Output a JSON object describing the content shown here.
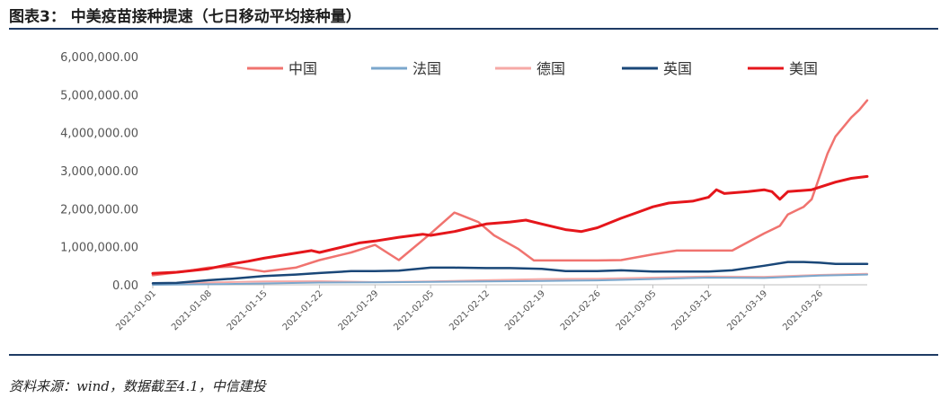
{
  "figure": {
    "title": "图表3： 中美疫苗接种提速（七日移动平均接种量）",
    "source": "资料来源：wind，数据截至4.1，中信建投"
  },
  "chart_data": {
    "type": "line",
    "title": "",
    "xlabel": "",
    "ylabel": "",
    "ylim": [
      0,
      6000000
    ],
    "yticks": [
      "0.00",
      "1,000,000.00",
      "2,000,000.00",
      "3,000,000.00",
      "4,000,000.00",
      "5,000,000.00",
      "6,000,000.00"
    ],
    "yvalues": [
      0,
      1000000,
      2000000,
      3000000,
      4000000,
      5000000,
      6000000
    ],
    "xticks": [
      "2021-01-01",
      "2021-01-08",
      "2021-01-15",
      "2021-01-22",
      "2021-01-29",
      "2021-02-05",
      "2021-02-12",
      "2021-02-19",
      "2021-02-26",
      "2021-03-05",
      "2021-03-12",
      "2021-03-19",
      "2021-03-26"
    ],
    "x_start": "2021-01-01",
    "x_end": "2021-03-31",
    "grid": false,
    "legend": "top",
    "series": [
      {
        "name": "中国",
        "color": "#f0736f",
        "width": 2.5,
        "points": [
          [
            "2021-01-01",
            250000
          ],
          [
            "2021-01-05",
            350000
          ],
          [
            "2021-01-08",
            450000
          ],
          [
            "2021-01-11",
            480000
          ],
          [
            "2021-01-15",
            350000
          ],
          [
            "2021-01-19",
            450000
          ],
          [
            "2021-01-22",
            650000
          ],
          [
            "2021-01-26",
            850000
          ],
          [
            "2021-01-29",
            1050000
          ],
          [
            "2021-02-01",
            650000
          ],
          [
            "2021-02-05",
            1350000
          ],
          [
            "2021-02-08",
            1900000
          ],
          [
            "2021-02-11",
            1650000
          ],
          [
            "2021-02-13",
            1300000
          ],
          [
            "2021-02-16",
            950000
          ],
          [
            "2021-02-18",
            640000
          ],
          [
            "2021-02-22",
            640000
          ],
          [
            "2021-02-26",
            640000
          ],
          [
            "2021-03-01",
            650000
          ],
          [
            "2021-03-05",
            800000
          ],
          [
            "2021-03-08",
            900000
          ],
          [
            "2021-03-12",
            900000
          ],
          [
            "2021-03-15",
            900000
          ],
          [
            "2021-03-19",
            1350000
          ],
          [
            "2021-03-21",
            1550000
          ],
          [
            "2021-03-22",
            1850000
          ],
          [
            "2021-03-24",
            2050000
          ],
          [
            "2021-03-25",
            2250000
          ],
          [
            "2021-03-27",
            3450000
          ],
          [
            "2021-03-28",
            3900000
          ],
          [
            "2021-03-30",
            4400000
          ],
          [
            "2021-03-31",
            4600000
          ],
          [
            "2021-04-01",
            4850000
          ]
        ]
      },
      {
        "name": "法国",
        "color": "#7ba7cc",
        "width": 2,
        "points": [
          [
            "2021-01-01",
            0
          ],
          [
            "2021-01-08",
            15000
          ],
          [
            "2021-01-15",
            35000
          ],
          [
            "2021-01-22",
            60000
          ],
          [
            "2021-01-29",
            65000
          ],
          [
            "2021-02-05",
            75000
          ],
          [
            "2021-02-12",
            90000
          ],
          [
            "2021-02-19",
            100000
          ],
          [
            "2021-02-26",
            115000
          ],
          [
            "2021-03-05",
            150000
          ],
          [
            "2021-03-12",
            190000
          ],
          [
            "2021-03-19",
            180000
          ],
          [
            "2021-03-26",
            240000
          ],
          [
            "2021-04-01",
            270000
          ]
        ]
      },
      {
        "name": "德国",
        "color": "#f6a9a6",
        "width": 2,
        "points": [
          [
            "2021-01-01",
            20000
          ],
          [
            "2021-01-08",
            60000
          ],
          [
            "2021-01-15",
            90000
          ],
          [
            "2021-01-22",
            95000
          ],
          [
            "2021-01-29",
            70000
          ],
          [
            "2021-02-05",
            90000
          ],
          [
            "2021-02-12",
            120000
          ],
          [
            "2021-02-19",
            150000
          ],
          [
            "2021-02-26",
            160000
          ],
          [
            "2021-03-05",
            190000
          ],
          [
            "2021-03-12",
            220000
          ],
          [
            "2021-03-19",
            210000
          ],
          [
            "2021-03-26",
            260000
          ],
          [
            "2021-04-01",
            290000
          ]
        ]
      },
      {
        "name": "英国",
        "color": "#1a4778",
        "width": 2.5,
        "points": [
          [
            "2021-01-01",
            40000
          ],
          [
            "2021-01-04",
            50000
          ],
          [
            "2021-01-08",
            120000
          ],
          [
            "2021-01-11",
            160000
          ],
          [
            "2021-01-15",
            230000
          ],
          [
            "2021-01-19",
            270000
          ],
          [
            "2021-01-22",
            310000
          ],
          [
            "2021-01-26",
            360000
          ],
          [
            "2021-01-29",
            360000
          ],
          [
            "2021-02-01",
            370000
          ],
          [
            "2021-02-05",
            450000
          ],
          [
            "2021-02-08",
            450000
          ],
          [
            "2021-02-12",
            440000
          ],
          [
            "2021-02-15",
            440000
          ],
          [
            "2021-02-19",
            420000
          ],
          [
            "2021-02-22",
            360000
          ],
          [
            "2021-02-26",
            360000
          ],
          [
            "2021-03-01",
            380000
          ],
          [
            "2021-03-05",
            350000
          ],
          [
            "2021-03-08",
            350000
          ],
          [
            "2021-03-12",
            350000
          ],
          [
            "2021-03-15",
            380000
          ],
          [
            "2021-03-19",
            500000
          ],
          [
            "2021-03-22",
            600000
          ],
          [
            "2021-03-24",
            600000
          ],
          [
            "2021-03-26",
            580000
          ],
          [
            "2021-03-28",
            550000
          ],
          [
            "2021-04-01",
            550000
          ]
        ]
      },
      {
        "name": "美国",
        "color": "#e5161b",
        "width": 3,
        "points": [
          [
            "2021-01-01",
            300000
          ],
          [
            "2021-01-04",
            330000
          ],
          [
            "2021-01-08",
            420000
          ],
          [
            "2021-01-11",
            550000
          ],
          [
            "2021-01-13",
            620000
          ],
          [
            "2021-01-15",
            700000
          ],
          [
            "2021-01-18",
            800000
          ],
          [
            "2021-01-21",
            900000
          ],
          [
            "2021-01-22",
            850000
          ],
          [
            "2021-01-25",
            1000000
          ],
          [
            "2021-01-27",
            1100000
          ],
          [
            "2021-01-29",
            1150000
          ],
          [
            "2021-02-01",
            1250000
          ],
          [
            "2021-02-04",
            1330000
          ],
          [
            "2021-02-05",
            1300000
          ],
          [
            "2021-02-08",
            1400000
          ],
          [
            "2021-02-10",
            1500000
          ],
          [
            "2021-02-12",
            1600000
          ],
          [
            "2021-02-15",
            1650000
          ],
          [
            "2021-02-17",
            1700000
          ],
          [
            "2021-02-19",
            1600000
          ],
          [
            "2021-02-22",
            1450000
          ],
          [
            "2021-02-24",
            1400000
          ],
          [
            "2021-02-26",
            1500000
          ],
          [
            "2021-03-01",
            1750000
          ],
          [
            "2021-03-03",
            1900000
          ],
          [
            "2021-03-05",
            2050000
          ],
          [
            "2021-03-07",
            2150000
          ],
          [
            "2021-03-10",
            2200000
          ],
          [
            "2021-03-12",
            2300000
          ],
          [
            "2021-03-13",
            2500000
          ],
          [
            "2021-03-14",
            2400000
          ],
          [
            "2021-03-17",
            2450000
          ],
          [
            "2021-03-19",
            2500000
          ],
          [
            "2021-03-20",
            2450000
          ],
          [
            "2021-03-21",
            2250000
          ],
          [
            "2021-03-22",
            2450000
          ],
          [
            "2021-03-25",
            2500000
          ],
          [
            "2021-03-28",
            2700000
          ],
          [
            "2021-03-30",
            2800000
          ],
          [
            "2021-04-01",
            2850000
          ]
        ]
      }
    ]
  }
}
